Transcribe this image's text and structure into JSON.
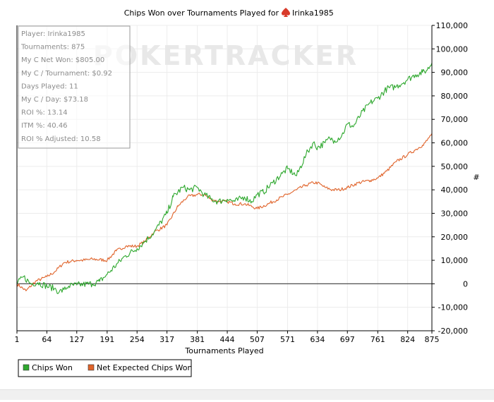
{
  "chart_data": {
    "type": "line",
    "title": "Chips Won over Tournaments Played for",
    "player_name": "Irinka1985",
    "watermark": "POKERTRACKER",
    "xlabel": "Tournaments Played",
    "ylabel": "#",
    "xlim": [
      1,
      875
    ],
    "ylim": [
      -20000,
      110000
    ],
    "x_ticks": [
      1,
      64,
      127,
      191,
      254,
      317,
      381,
      444,
      507,
      571,
      634,
      697,
      761,
      824,
      875
    ],
    "y_ticks": [
      -20000,
      -10000,
      0,
      10000,
      20000,
      30000,
      40000,
      50000,
      60000,
      70000,
      80000,
      90000,
      100000,
      110000
    ],
    "y_tick_labels": [
      "-20,000",
      "-10,000",
      "0",
      "10,000",
      "20,000",
      "30,000",
      "40,000",
      "50,000",
      "60,000",
      "70,000",
      "80,000",
      "90,000",
      "100,000",
      "110,000"
    ],
    "grid": true,
    "legend_position": "bottom-left",
    "stats_box": [
      "Player: Irinka1985",
      "Tournaments: 875",
      "My C Net Won: $805.00",
      "My C / Tournament: $0.92",
      "Days Played: 11",
      "My C / Day: $73.18",
      "ROI %: 13.14",
      "ITM %: 40.46",
      "ROI % Adjusted: 10.58"
    ],
    "series": [
      {
        "name": "Chips Won",
        "color": "#2ea82e",
        "x": [
          1,
          15,
          30,
          45,
          64,
          80,
          90,
          100,
          110,
          127,
          140,
          160,
          175,
          191,
          210,
          230,
          254,
          270,
          290,
          317,
          330,
          350,
          365,
          381,
          395,
          410,
          425,
          444,
          460,
          480,
          495,
          507,
          520,
          540,
          560,
          571,
          590,
          610,
          625,
          634,
          650,
          660,
          670,
          685,
          697,
          710,
          725,
          745,
          761,
          780,
          800,
          824,
          840,
          855,
          865,
          875
        ],
        "values": [
          0,
          3000,
          0,
          500,
          -1000,
          -2000,
          -3500,
          -2500,
          -1000,
          -500,
          -300,
          0,
          1000,
          4000,
          8000,
          12000,
          15000,
          18000,
          22000,
          30000,
          37000,
          41000,
          40000,
          41000,
          38000,
          36000,
          35000,
          36000,
          35000,
          37000,
          35000,
          38000,
          39000,
          43000,
          47000,
          49000,
          46000,
          55000,
          60000,
          58000,
          60000,
          62000,
          61000,
          63000,
          68000,
          67000,
          72000,
          77000,
          79000,
          83000,
          84000,
          87000,
          89000,
          90000,
          91000,
          94000
        ]
      },
      {
        "name": "Net Expected Chips Won",
        "color": "#e0632a",
        "x": [
          1,
          20,
          40,
          64,
          80,
          100,
          127,
          140,
          160,
          191,
          210,
          230,
          254,
          270,
          290,
          317,
          340,
          360,
          381,
          395,
          410,
          425,
          444,
          460,
          480,
          495,
          507,
          530,
          560,
          571,
          590,
          610,
          625,
          634,
          650,
          665,
          680,
          697,
          720,
          745,
          761,
          780,
          800,
          824,
          840,
          855,
          865,
          875
        ],
        "values": [
          0,
          -3000,
          1000,
          3000,
          5000,
          9000,
          10000,
          10000,
          10500,
          10000,
          14000,
          16000,
          16000,
          18000,
          22000,
          25000,
          33000,
          37000,
          38000,
          38000,
          36000,
          35000,
          35000,
          34000,
          34000,
          33000,
          32000,
          34000,
          37000,
          38000,
          40000,
          42000,
          43000,
          43000,
          41000,
          40000,
          40000,
          41000,
          43000,
          44000,
          45000,
          48000,
          52000,
          55000,
          57000,
          59000,
          61000,
          64000
        ]
      }
    ]
  }
}
